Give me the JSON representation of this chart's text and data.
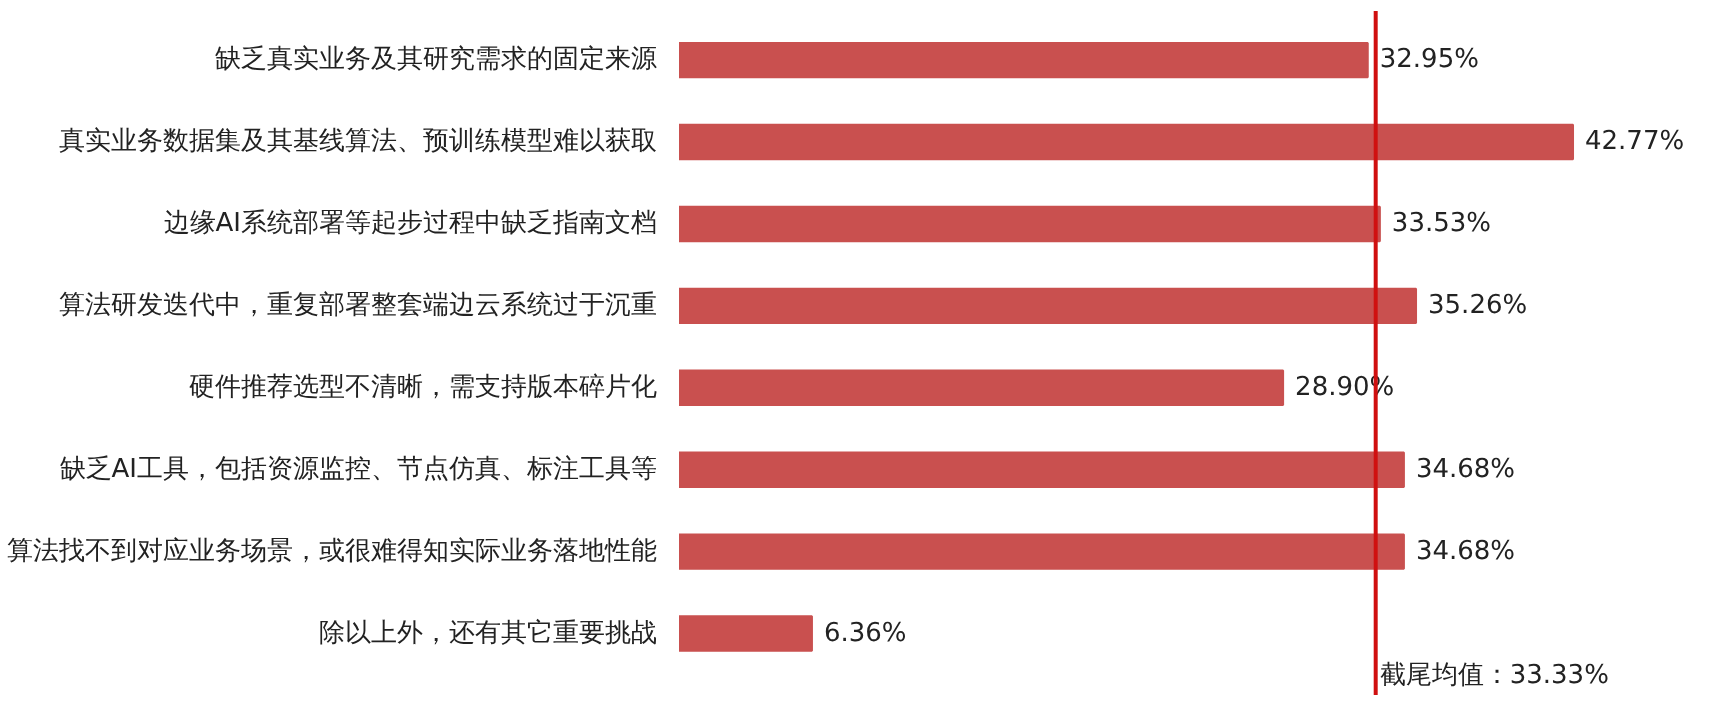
{
  "chart_data": {
    "type": "bar",
    "orientation": "horizontal",
    "categories": [
      "缺乏真实业务及其研究需求的固定来源",
      "真实业务数据集及其基线算法、预训练模型难以获取",
      "边缘AI系统部署等起步过程中缺乏指南文档",
      "算法研发迭代中，重复部署整套端边云系统过于沉重",
      "硬件推荐选型不清晰，需支持版本碎片化",
      "缺乏AI工具，包括资源监控、节点仿真、标注工具等",
      "算法找不到对应业务场景，或很难得知实际业务落地性能",
      "除以上外，还有其它重要挑战"
    ],
    "values": [
      32.95,
      42.77,
      33.53,
      35.26,
      28.9,
      34.68,
      34.68,
      6.36
    ],
    "value_labels": [
      "32.95%",
      "42.77%",
      "33.53%",
      "35.26%",
      "28.90%",
      "34.68%",
      "34.68%",
      "6.36%"
    ],
    "color": "#c9504f",
    "ref_lines": [
      {
        "axis": "x",
        "value": 33.33,
        "label": "截尾均值：33.33%",
        "color": "#d01010"
      }
    ],
    "grid": false
  }
}
